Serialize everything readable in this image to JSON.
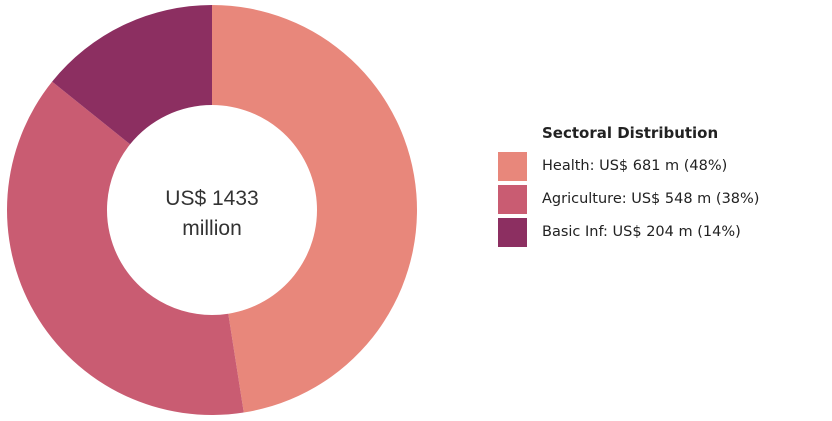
{
  "chart_data": {
    "type": "pie",
    "donut": true,
    "center_label": [
      "US$ 1433",
      "million"
    ],
    "legend_title": "Sectoral Distribution",
    "legend_placement": "right",
    "slices": [
      {
        "label": "Health: US$ 681 m (48%)",
        "value": 681,
        "color": "#E8877B"
      },
      {
        "label": "Agriculture: US$ 548 m (38%)",
        "value": 548,
        "color": "#C95C72"
      },
      {
        "label": "Basic Inf: US$ 204 m (14%)",
        "value": 204,
        "color": "#8C2F61"
      }
    ]
  }
}
